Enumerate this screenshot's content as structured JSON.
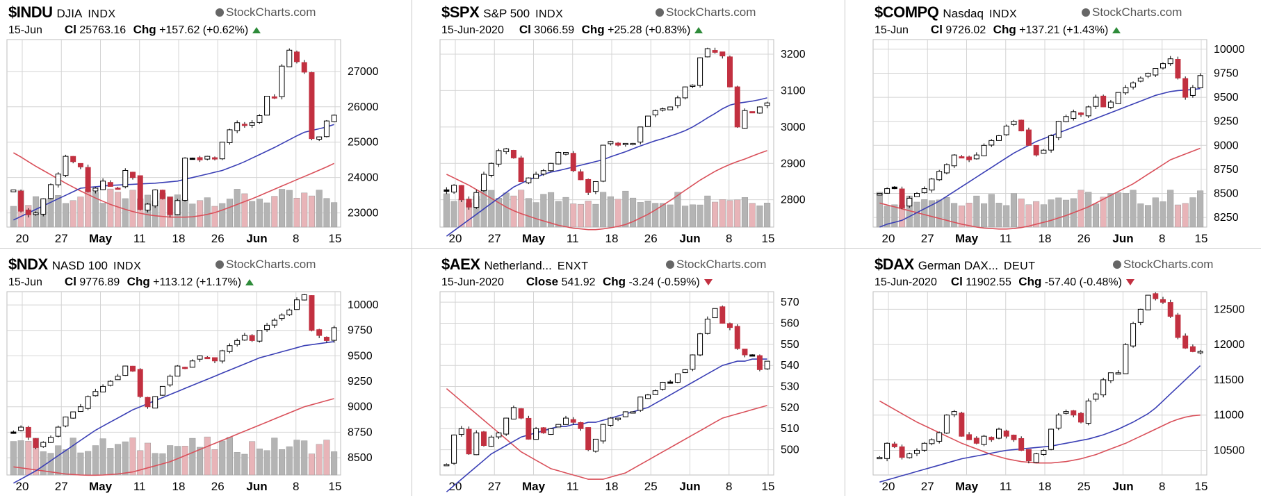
{
  "brand": "StockCharts.com",
  "panels": [
    {
      "symbol": "$INDU",
      "name": "DJIA",
      "exchange": "INDX",
      "date": "15-Jun",
      "close_label": "Cl",
      "close": "25763.16",
      "chg_label": "Chg",
      "chg": "+157.62 (+0.62%)",
      "direction": "up"
    },
    {
      "symbol": "$SPX",
      "name": "S&P 500",
      "exchange": "INDX",
      "date": "15-Jun-2020",
      "close_label": "Cl",
      "close": "3066.59",
      "chg_label": "Chg",
      "chg": "+25.28 (+0.83%)",
      "direction": "up"
    },
    {
      "symbol": "$COMPQ",
      "name": "Nasdaq",
      "exchange": "INDX",
      "date": "15-Jun",
      "close_label": "Cl",
      "close": "9726.02",
      "chg_label": "Chg",
      "chg": "+137.21 (+1.43%)",
      "direction": "up"
    },
    {
      "symbol": "$NDX",
      "name": "NASD 100",
      "exchange": "INDX",
      "date": "15-Jun",
      "close_label": "Cl",
      "close": "9776.89",
      "chg_label": "Chg",
      "chg": "+113.12 (+1.17%)",
      "direction": "up"
    },
    {
      "symbol": "$AEX",
      "name": "Netherland...",
      "exchange": "ENXT",
      "date": "15-Jun-2020",
      "close_label": "Close",
      "close": "541.92",
      "chg_label": "Chg",
      "chg": "-3.24 (-0.59%)",
      "direction": "down"
    },
    {
      "symbol": "$DAX",
      "name": "German DAX...",
      "exchange": "DEUT",
      "date": "15-Jun-2020",
      "close_label": "Cl",
      "close": "11902.55",
      "chg_label": "Chg",
      "chg": "-57.40 (-0.48%)",
      "direction": "down"
    }
  ],
  "colors": {
    "up_candle": "#ffffff",
    "down_candle": "#c23040",
    "ma_short": "#3a3fb5",
    "ma_long": "#d9505a",
    "volume_up": "#b4b4b4",
    "volume_down": "#e8b4b8",
    "grid": "#d4d4d4"
  },
  "chart_data": [
    {
      "type": "candlestick",
      "series_name": "$INDU",
      "x_labels": [
        "20",
        "27",
        "May",
        "11",
        "18",
        "26",
        "Jun",
        "8",
        "15"
      ],
      "x_bold": [
        false,
        false,
        true,
        false,
        false,
        false,
        true,
        false,
        false
      ],
      "yticks": [
        23000,
        24000,
        25000,
        26000,
        27000
      ],
      "ylim": [
        22600,
        27900
      ],
      "closes": [
        23650,
        23050,
        22950,
        23000,
        23400,
        23800,
        24100,
        24600,
        24450,
        24300,
        23600,
        23700,
        23900,
        23750,
        23700,
        24200,
        24000,
        23100,
        23250,
        23650,
        23400,
        22950,
        23350,
        24550,
        24550,
        24500,
        24600,
        24550,
        25000,
        25350,
        25550,
        25480,
        25550,
        25750,
        26300,
        26270,
        27150,
        27600,
        27275,
        26980,
        25100,
        25150,
        25600,
        25763
      ],
      "ma_short": [
        22800,
        22900,
        23000,
        23100,
        23200,
        23300,
        23400,
        23500,
        23600,
        23700,
        23720,
        23740,
        23760,
        23780,
        23790,
        23800,
        23810,
        23820,
        23830,
        23840,
        23860,
        23880,
        23900,
        23950,
        24000,
        24050,
        24100,
        24150,
        24200,
        24280,
        24360,
        24450,
        24550,
        24650,
        24750,
        24850,
        24960,
        25070,
        25180,
        25280,
        25330,
        25380,
        25430,
        25500
      ],
      "ma_long": [
        24700,
        24580,
        24450,
        24320,
        24200,
        24080,
        23960,
        23840,
        23730,
        23620,
        23520,
        23420,
        23330,
        23240,
        23170,
        23100,
        23040,
        22990,
        22950,
        22920,
        22900,
        22880,
        22880,
        22880,
        22890,
        22920,
        22960,
        23010,
        23080,
        23160,
        23240,
        23320,
        23400,
        23490,
        23580,
        23670,
        23760,
        23850,
        23940,
        24030,
        24120,
        24210,
        24300,
        24400
      ]
    },
    {
      "type": "candlestick",
      "series_name": "$SPX",
      "x_labels": [
        "20",
        "27",
        "May",
        "11",
        "18",
        "26",
        "Jun",
        "8",
        "15"
      ],
      "x_bold": [
        false,
        false,
        true,
        false,
        false,
        false,
        true,
        false,
        false
      ],
      "yticks": [
        2800,
        2900,
        3000,
        3100,
        3200
      ],
      "ylim": [
        2725,
        3240
      ],
      "closes": [
        2823,
        2840,
        2800,
        2780,
        2820,
        2870,
        2900,
        2935,
        2940,
        2915,
        2850,
        2860,
        2870,
        2880,
        2900,
        2930,
        2930,
        2880,
        2855,
        2820,
        2850,
        2950,
        2960,
        2950,
        2955,
        2955,
        3000,
        3030,
        3045,
        3050,
        3055,
        3080,
        3110,
        3115,
        3190,
        3215,
        3205,
        3195,
        3110,
        3000,
        3045,
        3040,
        3055,
        3066
      ],
      "ma_short": [
        2700,
        2715,
        2730,
        2745,
        2760,
        2775,
        2790,
        2805,
        2820,
        2835,
        2845,
        2855,
        2862,
        2870,
        2876,
        2880,
        2885,
        2890,
        2895,
        2900,
        2905,
        2910,
        2918,
        2925,
        2932,
        2940,
        2948,
        2955,
        2962,
        2968,
        2975,
        2982,
        2990,
        3000,
        3012,
        3025,
        3037,
        3050,
        3060,
        3065,
        3068,
        3071,
        3075,
        3080
      ],
      "ma_long": [
        2870,
        2860,
        2850,
        2840,
        2828,
        2816,
        2804,
        2792,
        2780,
        2770,
        2762,
        2755,
        2748,
        2742,
        2736,
        2730,
        2726,
        2722,
        2720,
        2718,
        2718,
        2720,
        2723,
        2727,
        2732,
        2740,
        2750,
        2760,
        2772,
        2785,
        2798,
        2812,
        2826,
        2840,
        2854,
        2866,
        2878,
        2888,
        2897,
        2905,
        2912,
        2920,
        2928,
        2935
      ]
    },
    {
      "type": "candlestick",
      "series_name": "$COMPQ",
      "x_labels": [
        "20",
        "27",
        "May",
        "11",
        "18",
        "26",
        "Jun",
        "8",
        "15"
      ],
      "x_bold": [
        false,
        false,
        true,
        false,
        false,
        false,
        true,
        false,
        false
      ],
      "yticks": [
        8250,
        8500,
        8750,
        9000,
        9250,
        9500,
        9750,
        10000
      ],
      "ylim": [
        8150,
        10100
      ],
      "closes": [
        8500,
        8550,
        8550,
        8350,
        8450,
        8500,
        8550,
        8650,
        8730,
        8800,
        8900,
        8880,
        8850,
        8900,
        9000,
        9050,
        9100,
        9200,
        9250,
        9150,
        9000,
        8900,
        8950,
        9100,
        9250,
        9300,
        9350,
        9320,
        9400,
        9500,
        9400,
        9450,
        9550,
        9600,
        9650,
        9700,
        9750,
        9800,
        9850,
        9900,
        9700,
        9500,
        9600,
        9726
      ],
      "ma_short": [
        8150,
        8180,
        8200,
        8220,
        8260,
        8300,
        8340,
        8380,
        8420,
        8470,
        8520,
        8570,
        8620,
        8670,
        8720,
        8770,
        8820,
        8870,
        8920,
        8960,
        9000,
        9040,
        9070,
        9100,
        9130,
        9160,
        9190,
        9220,
        9250,
        9280,
        9310,
        9340,
        9370,
        9400,
        9430,
        9460,
        9490,
        9520,
        9540,
        9560,
        9570,
        9575,
        9580,
        9590
      ],
      "ma_long": [
        8400,
        8380,
        8360,
        8340,
        8320,
        8300,
        8280,
        8260,
        8240,
        8220,
        8200,
        8180,
        8165,
        8150,
        8140,
        8135,
        8130,
        8130,
        8135,
        8145,
        8160,
        8180,
        8200,
        8220,
        8245,
        8270,
        8300,
        8330,
        8360,
        8400,
        8440,
        8480,
        8520,
        8560,
        8600,
        8650,
        8700,
        8750,
        8800,
        8850,
        8880,
        8910,
        8940,
        8970
      ]
    },
    {
      "type": "candlestick",
      "series_name": "$NDX",
      "x_labels": [
        "20",
        "27",
        "May",
        "11",
        "18",
        "26",
        "Jun",
        "8",
        "15"
      ],
      "x_bold": [
        false,
        false,
        true,
        false,
        false,
        false,
        true,
        false,
        false
      ],
      "yticks": [
        8500,
        8750,
        9000,
        9250,
        9500,
        9750,
        10000
      ],
      "ylim": [
        8330,
        10130
      ],
      "closes": [
        8750,
        8800,
        8700,
        8600,
        8650,
        8700,
        8800,
        8900,
        8950,
        9000,
        9100,
        9150,
        9200,
        9250,
        9300,
        9400,
        9350,
        9100,
        9000,
        9100,
        9200,
        9300,
        9400,
        9380,
        9450,
        9500,
        9480,
        9450,
        9550,
        9600,
        9650,
        9700,
        9650,
        9750,
        9800,
        9850,
        9900,
        9950,
        10050,
        10100,
        9750,
        9700,
        9650,
        9776
      ],
      "ma_short": [
        8250,
        8290,
        8330,
        8370,
        8420,
        8470,
        8520,
        8570,
        8620,
        8670,
        8720,
        8770,
        8810,
        8850,
        8890,
        8930,
        8970,
        9000,
        9030,
        9060,
        9090,
        9120,
        9150,
        9180,
        9210,
        9240,
        9270,
        9300,
        9330,
        9360,
        9390,
        9420,
        9450,
        9480,
        9500,
        9520,
        9540,
        9560,
        9580,
        9600,
        9610,
        9620,
        9630,
        9640
      ],
      "ma_long": [
        8410,
        8400,
        8390,
        8380,
        8370,
        8360,
        8350,
        8340,
        8335,
        8330,
        8328,
        8328,
        8330,
        8335,
        8340,
        8350,
        8360,
        8380,
        8400,
        8420,
        8440,
        8460,
        8490,
        8520,
        8550,
        8580,
        8610,
        8640,
        8670,
        8700,
        8730,
        8760,
        8790,
        8820,
        8850,
        8880,
        8910,
        8940,
        8970,
        9000,
        9020,
        9040,
        9060,
        9080
      ]
    },
    {
      "type": "candlestick",
      "series_name": "$AEX",
      "x_labels": [
        "20",
        "27",
        "May",
        "11",
        "18",
        "25",
        "Jun",
        "8",
        "15"
      ],
      "x_bold": [
        false,
        false,
        true,
        false,
        false,
        false,
        true,
        false,
        false
      ],
      "yticks": [
        500,
        510,
        520,
        530,
        540,
        550,
        560,
        570
      ],
      "ylim": [
        488,
        575
      ],
      "closes": [
        493,
        507,
        510,
        498,
        508,
        502,
        506,
        508,
        515,
        520,
        515,
        505,
        510,
        508,
        510,
        512,
        515,
        513,
        510,
        500,
        505,
        512,
        515,
        515,
        518,
        518,
        525,
        526,
        528,
        532,
        532,
        536,
        538,
        545,
        555,
        562,
        567,
        560,
        558,
        548,
        545,
        545,
        538,
        542
      ],
      "ma_short": [
        480,
        483,
        486,
        489,
        492,
        495,
        498,
        500,
        502,
        504,
        506,
        507,
        508,
        509,
        510,
        511,
        511,
        512,
        512,
        513,
        513,
        514,
        515,
        516,
        517,
        518,
        519,
        520,
        522,
        524,
        526,
        528,
        530,
        532,
        534,
        536,
        538,
        540,
        541,
        542,
        542,
        543,
        543,
        543
      ],
      "ma_long": [
        529,
        526,
        523,
        520,
        517,
        514,
        511,
        508,
        505,
        502,
        499,
        497,
        495,
        493,
        491,
        490,
        489,
        488,
        487,
        486,
        486,
        486,
        487,
        488,
        489,
        491,
        493,
        495,
        497,
        499,
        501,
        503,
        505,
        507,
        509,
        511,
        513,
        515,
        516,
        517,
        518,
        519,
        520,
        521
      ]
    },
    {
      "type": "candlestick",
      "series_name": "$DAX",
      "x_labels": [
        "20",
        "27",
        "May",
        "11",
        "18",
        "25",
        "Jun",
        "8",
        "15"
      ],
      "x_bold": [
        false,
        false,
        true,
        false,
        false,
        false,
        true,
        false,
        false
      ],
      "yticks": [
        10500,
        11000,
        11500,
        12000,
        12500
      ],
      "ylim": [
        10150,
        12750
      ],
      "closes": [
        10400,
        10600,
        10550,
        10400,
        10450,
        10500,
        10600,
        10650,
        10750,
        11000,
        11050,
        10700,
        10650,
        10600,
        10700,
        10650,
        10800,
        10700,
        10650,
        10500,
        10350,
        10450,
        10500,
        10800,
        11000,
        11050,
        11000,
        10900,
        11200,
        11300,
        11500,
        11600,
        11600,
        12000,
        12300,
        12500,
        12700,
        12650,
        12600,
        12400,
        12100,
        11950,
        11900,
        11902
      ],
      "ma_short": [
        10050,
        10080,
        10110,
        10140,
        10170,
        10200,
        10230,
        10260,
        10290,
        10320,
        10350,
        10380,
        10400,
        10420,
        10440,
        10460,
        10480,
        10500,
        10510,
        10520,
        10530,
        10540,
        10550,
        10560,
        10580,
        10600,
        10620,
        10640,
        10660,
        10690,
        10720,
        10760,
        10800,
        10850,
        10900,
        10960,
        11020,
        11100,
        11200,
        11300,
        11400,
        11500,
        11600,
        11700
      ],
      "ma_long": [
        11200,
        11140,
        11080,
        11020,
        10960,
        10900,
        10850,
        10800,
        10750,
        10700,
        10650,
        10600,
        10560,
        10520,
        10480,
        10440,
        10410,
        10380,
        10360,
        10340,
        10330,
        10320,
        10320,
        10320,
        10330,
        10340,
        10360,
        10380,
        10410,
        10440,
        10480,
        10520,
        10560,
        10600,
        10650,
        10700,
        10750,
        10800,
        10850,
        10900,
        10940,
        10970,
        10990,
        11000
      ]
    }
  ]
}
